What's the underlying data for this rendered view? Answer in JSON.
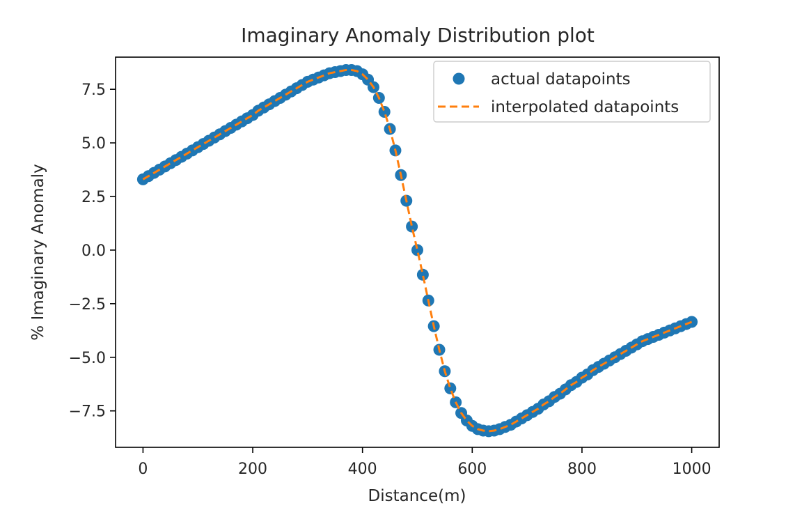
{
  "chart_data": {
    "type": "scatter",
    "title": "Imaginary Anomaly Distribution plot",
    "xlabel": "Distance(m)",
    "ylabel": "% Imaginary Anomaly",
    "xlim": [
      -50,
      1050
    ],
    "ylim": [
      -9.2,
      9.0
    ],
    "xticks": [
      0,
      200,
      400,
      600,
      800,
      1000
    ],
    "xtick_labels": [
      "0",
      "200",
      "400",
      "600",
      "800",
      "1000"
    ],
    "yticks": [
      7.5,
      5.0,
      2.5,
      0.0,
      -2.5,
      -5.0,
      -7.5
    ],
    "ytick_labels": [
      "7.5",
      "5.0",
      "2.5",
      "0.0",
      "−2.5",
      "−5.0",
      "−7.5"
    ],
    "grid": false,
    "legend_position": "upper right",
    "series": [
      {
        "name": "actual datapoints",
        "style": "markers",
        "color": "#1f77b4",
        "x": [
          0,
          10,
          20,
          30,
          40,
          50,
          60,
          70,
          80,
          90,
          100,
          110,
          120,
          130,
          140,
          150,
          160,
          170,
          180,
          190,
          200,
          210,
          220,
          230,
          240,
          250,
          260,
          270,
          280,
          290,
          300,
          310,
          320,
          330,
          340,
          350,
          360,
          370,
          380,
          390,
          400,
          410,
          420,
          430,
          440,
          450,
          460,
          470,
          480,
          490,
          500,
          510,
          520,
          530,
          540,
          550,
          560,
          570,
          580,
          590,
          600,
          610,
          620,
          630,
          640,
          650,
          660,
          670,
          680,
          690,
          700,
          710,
          720,
          730,
          740,
          750,
          760,
          770,
          780,
          790,
          800,
          810,
          820,
          830,
          840,
          850,
          860,
          870,
          880,
          890,
          900,
          910,
          920,
          930,
          940,
          950,
          960,
          970,
          980,
          990,
          1000
        ],
        "y": [
          3.3,
          3.45,
          3.6,
          3.75,
          3.9,
          4.05,
          4.2,
          4.35,
          4.5,
          4.65,
          4.8,
          4.95,
          5.1,
          5.25,
          5.4,
          5.55,
          5.7,
          5.85,
          6.0,
          6.15,
          6.3,
          6.5,
          6.65,
          6.8,
          6.95,
          7.1,
          7.25,
          7.4,
          7.55,
          7.7,
          7.85,
          7.95,
          8.05,
          8.15,
          8.25,
          8.3,
          8.35,
          8.4,
          8.4,
          8.35,
          8.2,
          7.95,
          7.6,
          7.1,
          6.45,
          5.65,
          4.65,
          3.5,
          2.3,
          1.1,
          0.0,
          -1.15,
          -2.35,
          -3.55,
          -4.65,
          -5.65,
          -6.45,
          -7.1,
          -7.6,
          -7.95,
          -8.2,
          -8.35,
          -8.42,
          -8.45,
          -8.42,
          -8.35,
          -8.25,
          -8.15,
          -8.0,
          -7.85,
          -7.7,
          -7.55,
          -7.4,
          -7.2,
          -7.05,
          -6.85,
          -6.7,
          -6.5,
          -6.3,
          -6.15,
          -5.95,
          -5.8,
          -5.6,
          -5.45,
          -5.3,
          -5.15,
          -5.0,
          -4.85,
          -4.7,
          -4.55,
          -4.4,
          -4.25,
          -4.15,
          -4.05,
          -3.95,
          -3.85,
          -3.75,
          -3.65,
          -3.55,
          -3.45,
          -3.35
        ]
      },
      {
        "name": "interpolated datapoints",
        "style": "dashed",
        "color": "#ff7f0e",
        "x": [
          0,
          10,
          20,
          30,
          40,
          50,
          60,
          70,
          80,
          90,
          100,
          110,
          120,
          130,
          140,
          150,
          160,
          170,
          180,
          190,
          200,
          210,
          220,
          230,
          240,
          250,
          260,
          270,
          280,
          290,
          300,
          310,
          320,
          330,
          340,
          350,
          360,
          370,
          380,
          390,
          400,
          410,
          420,
          430,
          440,
          450,
          460,
          470,
          480,
          490,
          500,
          510,
          520,
          530,
          540,
          550,
          560,
          570,
          580,
          590,
          600,
          610,
          620,
          630,
          640,
          650,
          660,
          670,
          680,
          690,
          700,
          710,
          720,
          730,
          740,
          750,
          760,
          770,
          780,
          790,
          800,
          810,
          820,
          830,
          840,
          850,
          860,
          870,
          880,
          890,
          900,
          910,
          920,
          930,
          940,
          950,
          960,
          970,
          980,
          990,
          1000
        ],
        "y": [
          3.3,
          3.45,
          3.6,
          3.75,
          3.9,
          4.05,
          4.2,
          4.35,
          4.5,
          4.65,
          4.8,
          4.95,
          5.1,
          5.25,
          5.4,
          5.55,
          5.7,
          5.85,
          6.0,
          6.15,
          6.3,
          6.5,
          6.65,
          6.8,
          6.95,
          7.1,
          7.25,
          7.4,
          7.55,
          7.7,
          7.85,
          7.95,
          8.05,
          8.15,
          8.25,
          8.3,
          8.35,
          8.4,
          8.4,
          8.35,
          8.2,
          7.95,
          7.6,
          7.1,
          6.45,
          5.65,
          4.65,
          3.5,
          2.3,
          1.1,
          0.0,
          -1.15,
          -2.35,
          -3.55,
          -4.65,
          -5.65,
          -6.45,
          -7.1,
          -7.6,
          -7.95,
          -8.2,
          -8.35,
          -8.42,
          -8.45,
          -8.42,
          -8.35,
          -8.25,
          -8.15,
          -8.0,
          -7.85,
          -7.7,
          -7.55,
          -7.4,
          -7.2,
          -7.05,
          -6.85,
          -6.7,
          -6.5,
          -6.3,
          -6.15,
          -5.95,
          -5.8,
          -5.6,
          -5.45,
          -5.3,
          -5.15,
          -5.0,
          -4.85,
          -4.7,
          -4.55,
          -4.4,
          -4.25,
          -4.15,
          -4.05,
          -3.95,
          -3.85,
          -3.75,
          -3.65,
          -3.55,
          -3.45,
          -3.35
        ]
      }
    ]
  }
}
